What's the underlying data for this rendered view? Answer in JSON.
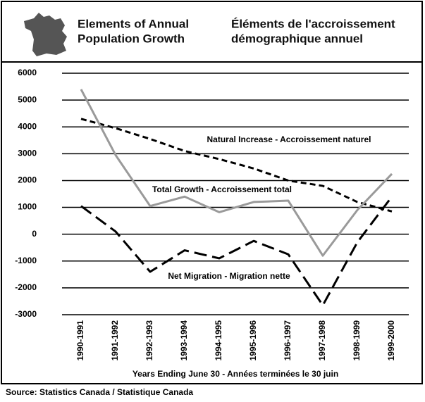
{
  "chart_data": {
    "type": "line",
    "title": [
      "Elements of Annual",
      "Population Growth"
    ],
    "subtitle": [
      "Éléments de l'accroissement",
      "démographique annuel"
    ],
    "x_label": "Years Ending June 30 - Années terminées le 30 juin",
    "source": "Source: Statistics Canada / Statistique Canada",
    "categories": [
      "1990-1991",
      "1991-1992",
      "1992-1993",
      "1993-1994",
      "1994-1995",
      "1995-1996",
      "1996-1997",
      "1997-1998",
      "1998-1999",
      "1999-2000"
    ],
    "series": [
      {
        "name": "Natural Increase - Accroissement naturel",
        "color": "#000000",
        "dash": "8,5",
        "values": [
          4300,
          3950,
          3550,
          3100,
          2800,
          2450,
          2000,
          1800,
          1200,
          850
        ]
      },
      {
        "name": "Total Growth - Accroissement total",
        "color": "#9a9a9a",
        "values": [
          5400,
          2950,
          1050,
          1400,
          820,
          1200,
          1250,
          -800,
          900,
          2250
        ]
      },
      {
        "name": "Net Migration - Migration nette",
        "color": "#000000",
        "dash": "18,8",
        "values": [
          1050,
          100,
          -1400,
          -600,
          -900,
          -250,
          -750,
          -2650,
          -300,
          1400
        ]
      }
    ],
    "ylim": [
      -3000,
      6000
    ],
    "yticks": [
      -3000,
      -2000,
      -1000,
      0,
      1000,
      2000,
      3000,
      4000,
      5000,
      6000
    ],
    "grid": true
  }
}
